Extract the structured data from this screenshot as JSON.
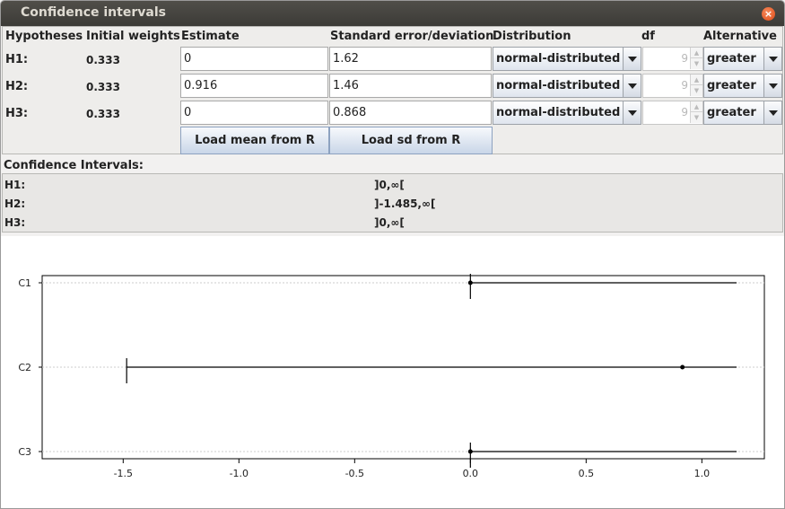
{
  "window": {
    "title": "Confidence intervals",
    "close_icon": "close-icon"
  },
  "table": {
    "headers": {
      "hypotheses": "Hypotheses",
      "initial_weights": "Initial weights",
      "estimate": "Estimate",
      "standard_error": "Standard error/deviation",
      "distribution": "Distribution",
      "df": "df",
      "alternative": "Alternative"
    },
    "rows": [
      {
        "label": "H1:",
        "weight": "0.333",
        "estimate": "0",
        "se": "1.62",
        "distribution": "normal-distributed",
        "df": "9",
        "alternative": "greater"
      },
      {
        "label": "H2:",
        "weight": "0.333",
        "estimate": "0.916",
        "se": "1.46",
        "distribution": "normal-distributed",
        "df": "9",
        "alternative": "greater"
      },
      {
        "label": "H3:",
        "weight": "0.333",
        "estimate": "0",
        "se": "0.868",
        "distribution": "normal-distributed",
        "df": "9",
        "alternative": "greater"
      }
    ],
    "buttons": {
      "load_mean": "Load mean from R",
      "load_sd": "Load sd from R"
    }
  },
  "confidence_intervals": {
    "title": "Confidence Intervals:",
    "rows": [
      {
        "label": "H1:",
        "value": "]0,∞["
      },
      {
        "label": "H2:",
        "value": "]-1.485,∞["
      },
      {
        "label": "H3:",
        "value": "]0,∞["
      }
    ]
  },
  "chart_data": {
    "type": "scatter",
    "categories": [
      "C1",
      "C2",
      "C3"
    ],
    "estimates": [
      0,
      0.916,
      0
    ],
    "lower": [
      0,
      -1.485,
      0
    ],
    "upper": [
      1.15,
      1.15,
      1.15
    ],
    "xlim": [
      -1.85,
      1.27
    ],
    "xticks": [
      -1.5,
      -1.0,
      -0.5,
      0.0,
      0.5,
      1.0
    ],
    "xtick_labels": [
      "-1.5",
      "-1.0",
      "-0.5",
      "0.0",
      "0.5",
      "1.0"
    ],
    "grid": true,
    "colors": {
      "line": "#000000",
      "grid": "#cccccc"
    }
  }
}
